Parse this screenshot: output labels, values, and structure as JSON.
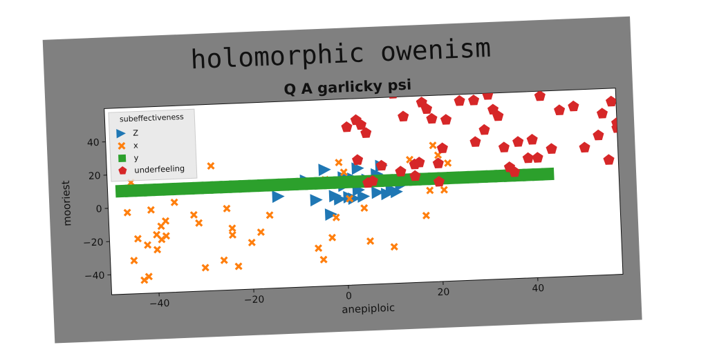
{
  "figure": {
    "suptitle": "holomorphic owenism",
    "background": "#808080"
  },
  "chart_data": {
    "type": "scatter",
    "title": "Q A garlicky psi",
    "xlabel": "anepiploic",
    "ylabel": "mooriest",
    "xlim": [
      -50,
      58
    ],
    "ylim": [
      -52,
      60
    ],
    "xticks": [
      -40,
      -20,
      0,
      20,
      40
    ],
    "yticks": [
      -40,
      -20,
      0,
      20,
      40
    ],
    "xtick_labels": [
      "−40",
      "−20",
      "0",
      "20",
      "40"
    ],
    "ytick_labels": [
      "−40",
      "−20",
      "0",
      "20",
      "40"
    ],
    "grid": false,
    "legend": {
      "title": "subeffectiveness",
      "placement": "top-left",
      "entries": [
        "Z",
        "x",
        "y",
        "underfeeling"
      ]
    },
    "series": [
      {
        "name": "Z",
        "marker": "triangle-right",
        "color": "#1f77b4",
        "points": [
          [
            -14,
            3
          ],
          [
            -8,
            12
          ],
          [
            -6,
            0
          ],
          [
            -5,
            10
          ],
          [
            -4,
            18
          ],
          [
            -3,
            -9
          ],
          [
            -2,
            2
          ],
          [
            -1,
            0
          ],
          [
            0,
            8
          ],
          [
            0,
            13
          ],
          [
            1,
            1
          ],
          [
            2,
            0
          ],
          [
            2,
            12
          ],
          [
            3,
            5
          ],
          [
            3,
            18
          ],
          [
            4,
            1
          ],
          [
            5,
            11
          ],
          [
            6,
            10
          ],
          [
            7,
            3
          ],
          [
            7,
            14
          ],
          [
            8,
            19
          ],
          [
            9,
            2
          ],
          [
            10,
            4
          ],
          [
            11,
            3
          ],
          [
            12,
            7
          ]
        ]
      },
      {
        "name": "x",
        "marker": "x",
        "color": "#ff7f0e",
        "points": [
          [
            -46,
            -3
          ],
          [
            -45,
            15
          ],
          [
            -45,
            -32
          ],
          [
            -44,
            -19
          ],
          [
            -43,
            -44
          ],
          [
            -42,
            -42
          ],
          [
            -42,
            -23
          ],
          [
            -41,
            -2
          ],
          [
            -40,
            -17
          ],
          [
            -40,
            -26
          ],
          [
            -39,
            -12
          ],
          [
            -39,
            -20
          ],
          [
            -38,
            -18
          ],
          [
            -38,
            -9
          ],
          [
            -36,
            2
          ],
          [
            -32,
            -6
          ],
          [
            -31,
            -11
          ],
          [
            -30,
            -38
          ],
          [
            -28,
            23
          ],
          [
            -26,
            -34
          ],
          [
            -25,
            -3
          ],
          [
            -24,
            -15
          ],
          [
            -24,
            -19
          ],
          [
            -23,
            -38
          ],
          [
            -20,
            -24
          ],
          [
            -18,
            -18
          ],
          [
            -16,
            -8
          ],
          [
            -6,
            -29
          ],
          [
            -5,
            -36
          ],
          [
            -4,
            12
          ],
          [
            -3,
            -23
          ],
          [
            -2,
            -11
          ],
          [
            -1,
            22
          ],
          [
            0,
            16
          ],
          [
            1,
            0
          ],
          [
            3,
            22
          ],
          [
            4,
            -6
          ],
          [
            5,
            -26
          ],
          [
            10,
            -30
          ],
          [
            14,
            22
          ],
          [
            16,
            20
          ],
          [
            17,
            -12
          ],
          [
            18,
            3
          ],
          [
            19,
            30
          ],
          [
            20,
            24
          ],
          [
            21,
            3
          ],
          [
            22,
            19
          ]
        ]
      },
      {
        "name": "y",
        "marker": "square",
        "color": "#2ca02c",
        "points": [
          [
            -47,
            10
          ],
          [
            -45,
            10
          ],
          [
            -43,
            10
          ],
          [
            -41,
            10
          ],
          [
            -39,
            10
          ],
          [
            -37,
            10
          ],
          [
            -35,
            10
          ],
          [
            -33,
            10
          ],
          [
            -31,
            10
          ],
          [
            -29,
            10
          ],
          [
            -27,
            10
          ],
          [
            -25,
            10
          ],
          [
            -23,
            10
          ],
          [
            -21,
            10
          ],
          [
            -19,
            10
          ],
          [
            -17,
            10
          ],
          [
            -15,
            10
          ],
          [
            -13,
            10
          ],
          [
            -11,
            10
          ],
          [
            -9,
            10
          ],
          [
            -7,
            10
          ],
          [
            -5,
            10
          ],
          [
            -3,
            10
          ],
          [
            -1,
            10
          ],
          [
            1,
            10
          ],
          [
            3,
            10
          ],
          [
            5,
            10
          ],
          [
            7,
            10
          ],
          [
            9,
            10
          ],
          [
            11,
            10
          ],
          [
            13,
            10
          ],
          [
            15,
            10
          ],
          [
            17,
            10
          ],
          [
            19,
            10
          ],
          [
            21,
            10
          ],
          [
            23,
            10
          ],
          [
            25,
            10
          ],
          [
            27,
            10
          ],
          [
            29,
            10
          ],
          [
            31,
            10
          ],
          [
            33,
            10
          ],
          [
            35,
            10
          ],
          [
            37,
            10
          ],
          [
            39,
            10
          ],
          [
            41,
            10
          ],
          [
            43,
            10
          ]
        ]
      },
      {
        "name": "underfeeling",
        "marker": "pentagon",
        "color": "#d62728",
        "points": [
          [
            1,
            43
          ],
          [
            3,
            47
          ],
          [
            3,
            23
          ],
          [
            4,
            44
          ],
          [
            5,
            39
          ],
          [
            5,
            9
          ],
          [
            6,
            10
          ],
          [
            8,
            19
          ],
          [
            11,
            62
          ],
          [
            12,
            15
          ],
          [
            13,
            48
          ],
          [
            15,
            12
          ],
          [
            15,
            19
          ],
          [
            16,
            20
          ],
          [
            17,
            56
          ],
          [
            18,
            52
          ],
          [
            19,
            46
          ],
          [
            20,
            19
          ],
          [
            20,
            8
          ],
          [
            21,
            28
          ],
          [
            22,
            45
          ],
          [
            25,
            56
          ],
          [
            28,
            56
          ],
          [
            28,
            31
          ],
          [
            30,
            38
          ],
          [
            31,
            59
          ],
          [
            32,
            50
          ],
          [
            33,
            46
          ],
          [
            34,
            27
          ],
          [
            35,
            15
          ],
          [
            36,
            12
          ],
          [
            37,
            30
          ],
          [
            39,
            20
          ],
          [
            40,
            31
          ],
          [
            41,
            20
          ],
          [
            42,
            57
          ],
          [
            44,
            25
          ],
          [
            46,
            48
          ],
          [
            49,
            50
          ],
          [
            51,
            25
          ],
          [
            54,
            32
          ],
          [
            55,
            45
          ],
          [
            56,
            17
          ],
          [
            57,
            52
          ],
          [
            58,
            36
          ],
          [
            58,
            39
          ],
          [
            59,
            40
          ],
          [
            60,
            15
          ]
        ]
      }
    ]
  }
}
